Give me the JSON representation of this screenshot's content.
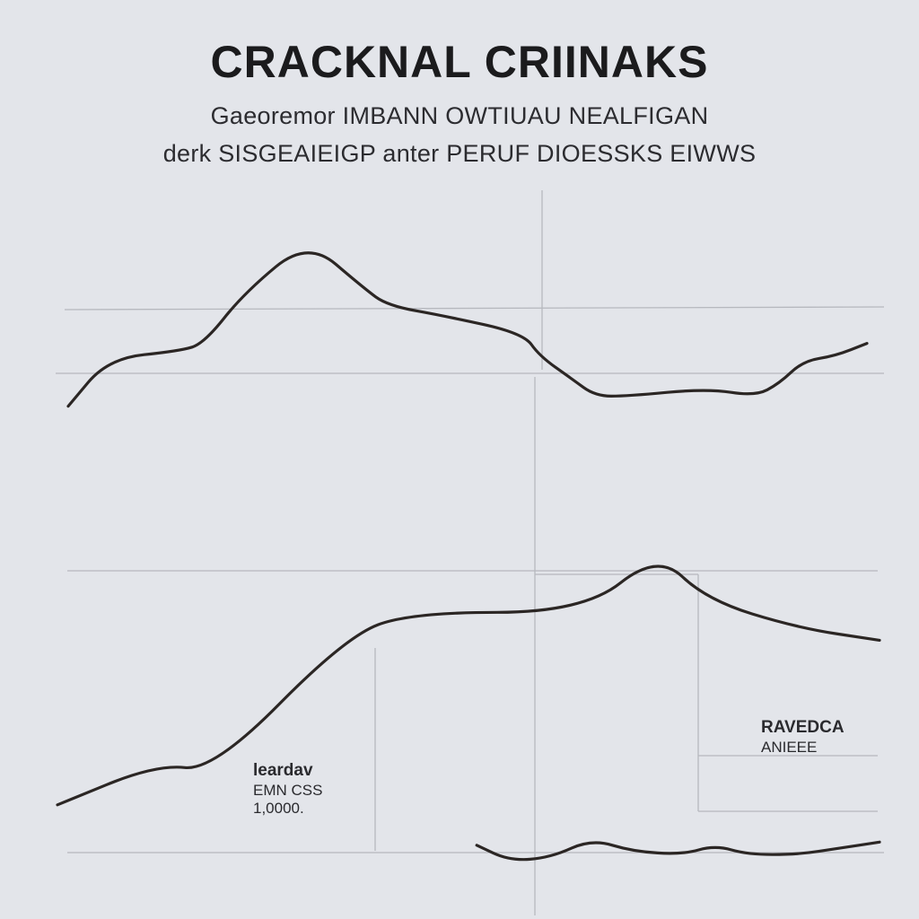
{
  "chart_data": [
    {
      "type": "line",
      "title": "CRACKNAL CRIINAKS",
      "subtitle_lines": [
        "Gaeoremor IMBANN  OWTIUAU  NEALFIGAN",
        "derk SISGEAIEIGP  anter PERUF DIOESSKS EIWWS"
      ],
      "panel": "upper",
      "xlim": [
        0,
        100
      ],
      "ylim": [
        0,
        100
      ],
      "series": [
        {
          "color": "#2b2624",
          "x": [
            0,
            5,
            14,
            17,
            22,
            30,
            37,
            40,
            47,
            57,
            59,
            63,
            66,
            70,
            80,
            86,
            89,
            92,
            96,
            100
          ],
          "y": [
            33,
            52,
            55,
            58,
            78,
            99,
            80,
            73,
            69,
            62,
            53,
            44,
            37,
            37,
            40,
            37,
            42,
            51,
            53,
            58
          ]
        }
      ]
    },
    {
      "type": "line",
      "panel": "lower",
      "xlim": [
        0,
        100
      ],
      "ylim": [
        0,
        100
      ],
      "series": [
        {
          "color": "#2b2624",
          "x": [
            0,
            12,
            19,
            35,
            43,
            64,
            73,
            79,
            90,
            100
          ],
          "y": [
            20,
            33,
            31,
            74,
            82,
            82,
            101,
            86,
            77,
            73
          ]
        },
        {
          "color": "#2b2624",
          "x": [
            51,
            55,
            60,
            65,
            70,
            76,
            80,
            84,
            90,
            95,
            100
          ],
          "y": [
            7,
            2,
            3,
            9,
            5,
            4,
            7,
            4,
            4,
            6,
            8
          ]
        }
      ],
      "annotations": [
        {
          "head": "leardav",
          "lines": [
            "EMN CSS",
            "1,0000."
          ]
        },
        {
          "head": "RAVEDCA",
          "lines": [
            "ANIEEE"
          ]
        }
      ]
    }
  ]
}
